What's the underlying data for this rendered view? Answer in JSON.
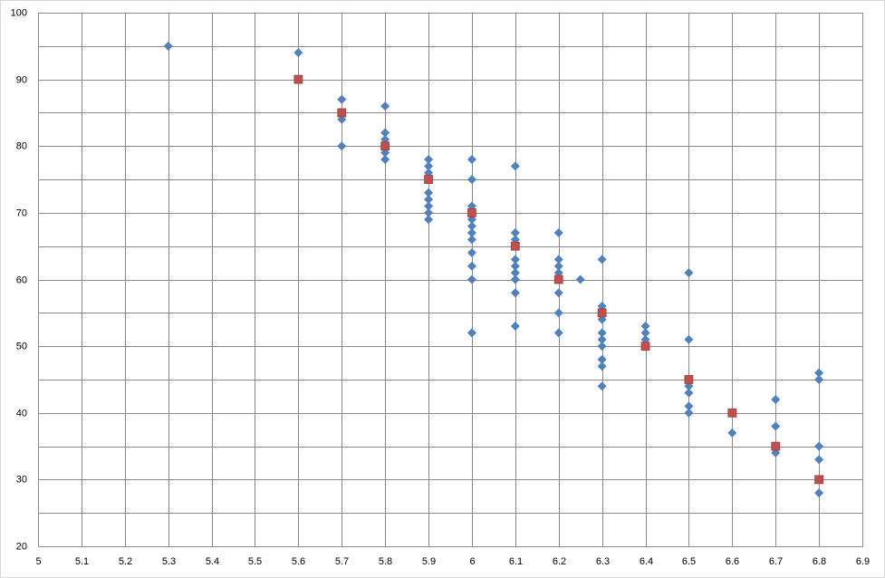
{
  "chart_data": {
    "type": "scatter",
    "xlim": [
      5,
      6.9
    ],
    "ylim": [
      20,
      100
    ],
    "xticks": [
      5,
      5.1,
      5.2,
      5.3,
      5.4,
      5.5,
      5.6,
      5.7,
      5.8,
      5.9,
      6,
      6.1,
      6.2,
      6.3,
      6.4,
      6.5,
      6.6,
      6.7,
      6.8,
      6.9
    ],
    "yticks": [
      20,
      30,
      40,
      50,
      60,
      70,
      80,
      90,
      100
    ],
    "y_minor_ticks": [
      25,
      35,
      45,
      55,
      65,
      75,
      85,
      95
    ],
    "grid": true,
    "series": [
      {
        "color": "#4f81bd",
        "marker": "diamond",
        "x": [
          5.3,
          5.6,
          5.7,
          5.7,
          5.7,
          5.8,
          5.8,
          5.8,
          5.8,
          5.8,
          5.9,
          5.9,
          5.9,
          5.9,
          5.9,
          5.9,
          5.9,
          5.9,
          6,
          6,
          6,
          6,
          6,
          6,
          6,
          6,
          6,
          6,
          6,
          6.1,
          6.1,
          6.1,
          6.1,
          6.1,
          6.1,
          6.1,
          6.1,
          6.1,
          6.2,
          6.2,
          6.2,
          6.2,
          6.2,
          6.2,
          6.2,
          6.25,
          6.3,
          6.3,
          6.3,
          6.3,
          6.3,
          6.3,
          6.3,
          6.3,
          6.3,
          6.4,
          6.4,
          6.4,
          6.5,
          6.5,
          6.5,
          6.5,
          6.5,
          6.5,
          6.6,
          6.7,
          6.7,
          6.7,
          6.8,
          6.8,
          6.8,
          6.8,
          6.8
        ],
        "values": [
          95,
          94,
          87,
          84,
          80,
          86,
          82,
          81,
          79,
          78,
          78,
          77,
          76,
          73,
          72,
          71,
          70,
          69,
          78,
          75,
          71,
          69,
          68,
          67,
          66,
          64,
          62,
          60,
          52,
          77,
          67,
          66,
          63,
          62,
          61,
          60,
          58,
          53,
          67,
          63,
          62,
          61,
          58,
          55,
          52,
          60,
          63,
          56,
          54,
          52,
          51,
          50,
          48,
          47,
          44,
          53,
          52,
          51,
          61,
          51,
          44,
          43,
          41,
          40,
          37,
          42,
          38,
          34,
          46,
          45,
          35,
          33,
          28
        ]
      },
      {
        "color": "#c0504d",
        "marker": "square",
        "x": [
          5.6,
          5.7,
          5.8,
          5.9,
          6,
          6.1,
          6.2,
          6.3,
          6.4,
          6.5,
          6.6,
          6.7,
          6.8
        ],
        "values": [
          90,
          85,
          80,
          75,
          70,
          65,
          60,
          55,
          50,
          45,
          40,
          35,
          30
        ]
      }
    ]
  }
}
